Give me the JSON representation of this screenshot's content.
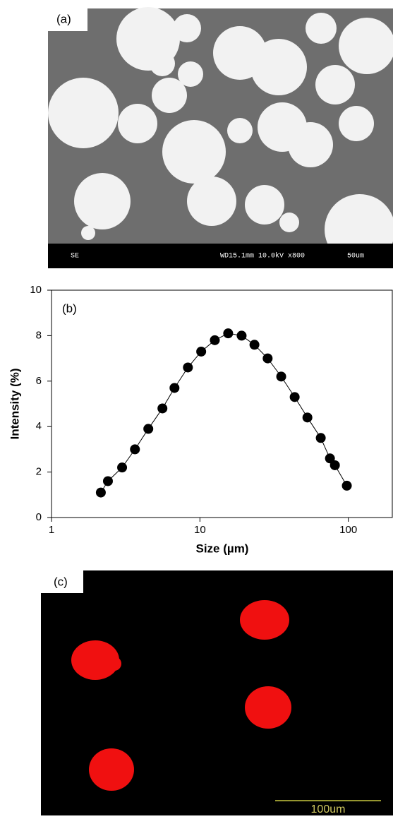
{
  "sem_image": {
    "label": "(a)",
    "detector": "SE",
    "settings": "WD15.1mm 10.0kV x800",
    "scale": "50um"
  },
  "chart_data": {
    "type": "scatter",
    "annotation": "(b)",
    "x_label": "Size (µm)",
    "y_label": "Intensity (%)",
    "x": [
      2.15,
      2.4,
      2.99,
      3.65,
      4.49,
      5.59,
      6.74,
      8.3,
      10.2,
      12.6,
      15.5,
      19.1,
      23.3,
      28.6,
      35.3,
      43.5,
      53,
      65.2,
      75.2,
      81.2,
      97.7
    ],
    "series": [
      {
        "color": "#000000",
        "values": [
          1.1,
          1.6,
          2.2,
          3.0,
          3.9,
          4.8,
          5.7,
          6.6,
          7.3,
          7.8,
          8.1,
          8.0,
          7.6,
          7.0,
          6.2,
          5.3,
          4.4,
          3.5,
          2.6,
          2.3,
          1.4
        ]
      }
    ],
    "xlim": [
      1,
      200
    ],
    "ylim": [
      0,
      10
    ],
    "xticks": [
      1,
      10,
      100
    ],
    "yticks": [
      0,
      2,
      4,
      6,
      8,
      10
    ],
    "x_log": true,
    "line": true
  },
  "fluorescence_image": {
    "label": "(c)",
    "scale": "100um"
  }
}
